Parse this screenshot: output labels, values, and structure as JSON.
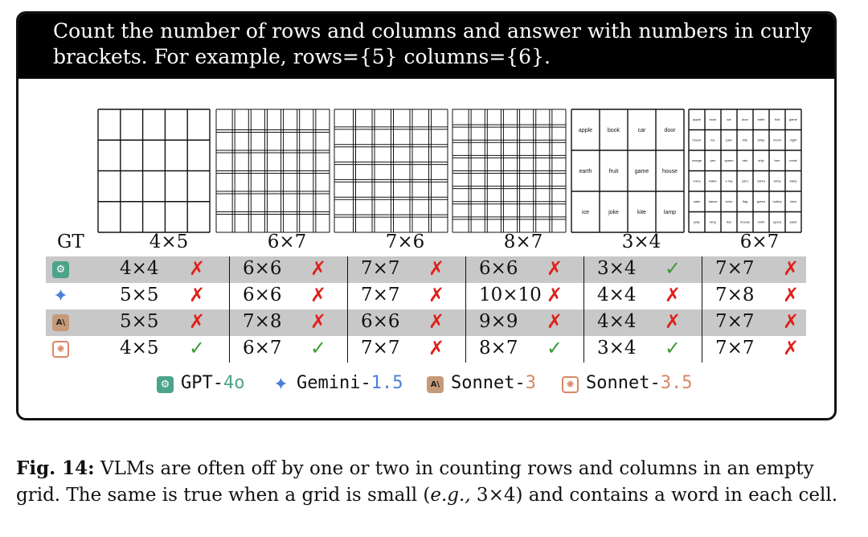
{
  "prompt": "Count the number of rows and columns and answer with numbers in curly brackets. For example, rows={5} columns={6}.",
  "gt_label": "GT",
  "ground_truth": [
    "4×5",
    "6×7",
    "7×6",
    "8×7",
    "3×4",
    "6×7"
  ],
  "word_grid_3x4": [
    "apple",
    "book",
    "car",
    "door",
    "earth",
    "fruit",
    "game",
    "house",
    "ice",
    "joke",
    "kite",
    "lamp"
  ],
  "word_grid_6x7": [
    "apple",
    "book",
    "car",
    "door",
    "earth",
    "fruit",
    "game",
    "house",
    "ice",
    "joke",
    "kite",
    "lamp",
    "moon",
    "night",
    "orange",
    "pen",
    "queen",
    "rain",
    "ship",
    "tree",
    "uncle",
    "voice",
    "water",
    "x-ray",
    "yarn",
    "zebra",
    "army",
    "baby",
    "cake",
    "dance",
    "echo",
    "flag",
    "green",
    "hobby",
    "idea",
    "jelly",
    "king",
    "lion",
    "mouse",
    "north",
    "opera",
    "plant"
  ],
  "models": [
    {
      "name": "GPT-4o",
      "base": "GPT-",
      "version": "4o",
      "icon": "gpt-icon",
      "color": "#4da38a",
      "answers": [
        "4×4",
        "6×6",
        "7×7",
        "6×6",
        "3×4",
        "7×7"
      ],
      "correct": [
        false,
        false,
        false,
        false,
        true,
        false
      ]
    },
    {
      "name": "Gemini-1.5",
      "base": "Gemini-",
      "version": "1.5",
      "icon": "gemini-star-icon",
      "color": "#4b7fd8",
      "answers": [
        "5×5",
        "6×6",
        "7×7",
        "10×10",
        "4×4",
        "7×8"
      ],
      "correct": [
        false,
        false,
        false,
        false,
        false,
        false
      ]
    },
    {
      "name": "Sonnet-3",
      "base": "Sonnet-",
      "version": "3",
      "icon": "anthropic-icon",
      "color": "#d98765",
      "answers": [
        "5×5",
        "7×8",
        "6×6",
        "9×9",
        "4×4",
        "7×7"
      ],
      "correct": [
        false,
        false,
        false,
        false,
        false,
        false
      ]
    },
    {
      "name": "Sonnet-3.5",
      "base": "Sonnet-",
      "version": "3.5",
      "icon": "sonnet-3-5-icon",
      "color": "#d98765",
      "answers": [
        "4×5",
        "6×7",
        "7×7",
        "8×7",
        "3×4",
        "7×7"
      ],
      "correct": [
        true,
        true,
        false,
        true,
        true,
        false
      ]
    }
  ],
  "marks": {
    "wrong": "✗",
    "right": "✓"
  },
  "caption": {
    "label": "Fig. 14:",
    "part1": " VLMs are often off by one or two in counting rows and columns in an empty grid. The same is true when a grid is small (",
    "eg": "e.g.,",
    "part2": " 3×4) and contains a word in each cell."
  }
}
